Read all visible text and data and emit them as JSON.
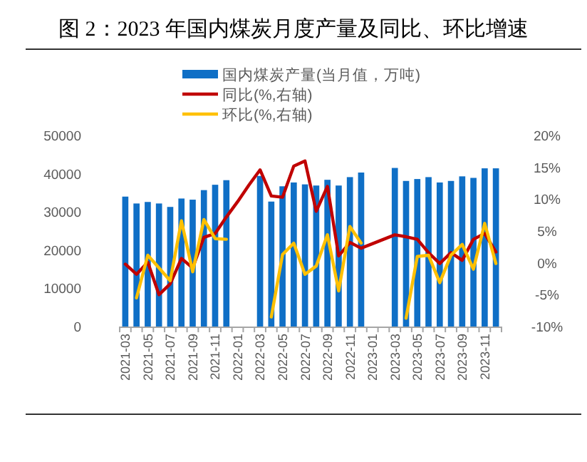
{
  "chart_data": {
    "type": "bar",
    "title": "图 2：2023 年国内煤炭月度产量及同比、环比增速",
    "categories": [
      "2021-03",
      null,
      "2021-05",
      null,
      "2021-07",
      null,
      "2021-09",
      null,
      "2021-11",
      null,
      "2022-01",
      null,
      "2022-03",
      null,
      "2022-05",
      null,
      "2022-07",
      null,
      "2022-09",
      null,
      "2022-11",
      null,
      "2023-01",
      null,
      "2023-03",
      null,
      "2023-05",
      null,
      "2023-07",
      null,
      "2023-09",
      null,
      "2023-11",
      null
    ],
    "series": [
      {
        "name": "国内煤炭产量(当月值，万吨)",
        "color": "#0f6fc6",
        "values": [
          34000,
          32200,
          32600,
          32200,
          31300,
          33500,
          33200,
          35700,
          37100,
          38300,
          null,
          null,
          39400,
          32700,
          36700,
          37700,
          37200,
          36900,
          38400,
          36900,
          39100,
          40300,
          null,
          null,
          41500,
          38100,
          38600,
          39100,
          37700,
          38100,
          39300,
          38900,
          41400,
          41400
        ]
      },
      {
        "name": "同比(%,右轴)",
        "type": "line",
        "axis": "y2",
        "color": "#c00000",
        "values": [
          -0.2,
          -1.8,
          0.1,
          -5.0,
          -3.3,
          0.7,
          -0.8,
          4.0,
          4.6,
          7.2,
          9.6,
          12.2,
          14.6,
          10.5,
          10.3,
          15.2,
          16.0,
          8.1,
          12.0,
          1.1,
          3.2,
          2.3,
          3.0,
          3.7,
          4.4,
          4.1,
          3.7,
          1.6,
          -0.1,
          1.6,
          0.4,
          3.7,
          4.6,
          1.7
        ]
      },
      {
        "name": "环比(%,右轴)",
        "type": "line",
        "axis": "y2",
        "color": "#ffc000",
        "values": [
          null,
          -5.5,
          1.2,
          -0.8,
          -2.8,
          6.6,
          -1.4,
          6.8,
          3.8,
          3.7,
          null,
          null,
          null,
          -8.5,
          1.3,
          3.1,
          -1.8,
          -0.5,
          4.4,
          -4.4,
          5.7,
          3.1,
          null,
          null,
          null,
          -8.7,
          1.0,
          1.2,
          -3.1,
          1.2,
          2.9,
          -1.0,
          6.2,
          -0.1
        ]
      }
    ],
    "ylim": [
      0,
      50000
    ],
    "yticks": [
      0,
      10000,
      20000,
      30000,
      40000,
      50000
    ],
    "y2lim": [
      -10,
      20
    ],
    "y2ticks": [
      {
        "value": -10,
        "label": "-10%"
      },
      {
        "value": -5,
        "label": "-5%"
      },
      {
        "value": 0,
        "label": "0%"
      },
      {
        "value": 5,
        "label": "5%"
      },
      {
        "value": 10,
        "label": "10%"
      },
      {
        "value": 15,
        "label": "15%"
      },
      {
        "value": 20,
        "label": "20%"
      }
    ],
    "legend": "top"
  }
}
